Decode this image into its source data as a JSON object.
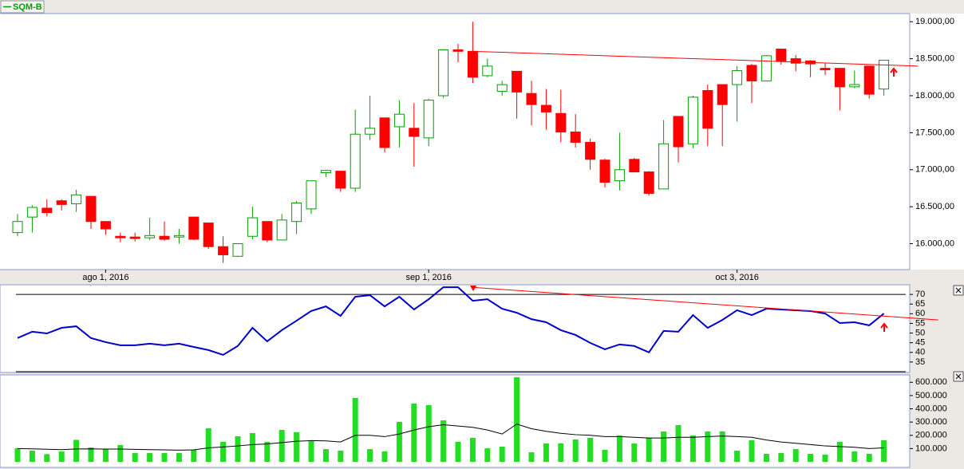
{
  "chart_data": [
    {
      "type": "candlestick",
      "title": "SQM-B",
      "categories": [
        null,
        null,
        null,
        null,
        null,
        null,
        "ago 1, 2016",
        null,
        null,
        null,
        null,
        null,
        null,
        null,
        null,
        null,
        null,
        null,
        null,
        null,
        null,
        null,
        null,
        null,
        null,
        null,
        null,
        null,
        "sep 1, 2016",
        null,
        null,
        null,
        null,
        null,
        null,
        null,
        null,
        null,
        null,
        null,
        null,
        null,
        null,
        null,
        null,
        null,
        null,
        null,
        null,
        "oct 3, 2016",
        null,
        null,
        null,
        null,
        null,
        null,
        null,
        null,
        null,
        null
      ],
      "open": [
        16150,
        16360,
        16480,
        16580,
        16540,
        16640,
        16300,
        16100,
        16090,
        16080,
        16100,
        16090,
        16360,
        16280,
        15960,
        15830,
        16100,
        16300,
        16050,
        16300,
        16470,
        16960,
        16980,
        16750,
        17480,
        17700,
        17580,
        17560,
        17430,
        18000,
        18620,
        18600,
        18270,
        18060,
        18330,
        18030,
        17870,
        17760,
        17510,
        17370,
        17130,
        16850,
        17140,
        16970,
        16740,
        17720,
        17350,
        18070,
        18150,
        18150,
        18410,
        18200,
        18630,
        18500,
        18470,
        18370,
        18370,
        18120,
        18400,
        18090
      ],
      "high": [
        16400,
        16520,
        16600,
        16600,
        16730,
        16640,
        16300,
        16150,
        16150,
        16350,
        16300,
        16200,
        16360,
        16280,
        16100,
        16000,
        16500,
        16300,
        16400,
        16580,
        16850,
        17000,
        16980,
        17810,
        18000,
        17700,
        17940,
        17900,
        17960,
        18620,
        18700,
        19000,
        18500,
        18200,
        18330,
        18200,
        18090,
        18080,
        17750,
        17420,
        17150,
        17500,
        17160,
        16980,
        17670,
        17720,
        18000,
        18150,
        18150,
        18400,
        18430,
        18550,
        18630,
        18550,
        18480,
        18440,
        18370,
        18340,
        18400,
        18480
      ],
      "low": [
        16100,
        16150,
        16370,
        16450,
        16430,
        16200,
        16120,
        16020,
        16030,
        16050,
        16040,
        16000,
        16050,
        15930,
        15740,
        15820,
        16060,
        16020,
        16050,
        16130,
        16400,
        16900,
        16700,
        16700,
        17400,
        17230,
        17300,
        17040,
        17320,
        17970,
        18450,
        18170,
        18250,
        18000,
        17690,
        17600,
        17540,
        17370,
        17300,
        17000,
        16760,
        16720,
        16970,
        16650,
        16740,
        17100,
        17290,
        17320,
        17320,
        17650,
        17900,
        18200,
        18420,
        18330,
        18250,
        18280,
        17800,
        18100,
        17960,
        18000
      ],
      "close": [
        16300,
        16490,
        16420,
        16530,
        16660,
        16300,
        16200,
        16080,
        16070,
        16110,
        16060,
        16110,
        16060,
        15960,
        15850,
        16000,
        16350,
        16050,
        16320,
        16550,
        16850,
        16990,
        16750,
        17480,
        17560,
        17300,
        17750,
        17450,
        17940,
        18620,
        18600,
        18250,
        18400,
        18150,
        18050,
        17880,
        17780,
        17510,
        17370,
        17140,
        16830,
        17000,
        16970,
        16680,
        17350,
        17310,
        17980,
        17560,
        17880,
        18340,
        18200,
        18540,
        18470,
        18440,
        18430,
        18350,
        18120,
        18150,
        18020,
        18480
      ],
      "up_color": "#00a000",
      "down_color": "#ff0000",
      "ylim": [
        15650,
        19110
      ],
      "yticks": [
        {
          "value": 16000,
          "label": "16.000,00"
        },
        {
          "value": 16500,
          "label": "16.500,00"
        },
        {
          "value": 17000,
          "label": "17.000,00"
        },
        {
          "value": 17500,
          "label": "17.500,00"
        },
        {
          "value": 18000,
          "label": "18.000,00"
        },
        {
          "value": 18500,
          "label": "18.500,00"
        },
        {
          "value": 19000,
          "label": "19.000,00"
        }
      ],
      "trendline": {
        "x": [
          31,
          61.3
        ],
        "y": [
          18600,
          18400
        ],
        "color": "#ff0000"
      }
    },
    {
      "type": "line",
      "color": "#0000cc",
      "values": [
        47.4,
        50.7,
        49.8,
        52.7,
        53.5,
        47.4,
        45.3,
        43.7,
        43.7,
        44.5,
        43.7,
        44.5,
        42.8,
        41.2,
        38.7,
        43.3,
        52.7,
        45.7,
        51.5,
        56.4,
        61.4,
        63.8,
        58.9,
        68.8,
        69.6,
        63.8,
        68.8,
        62.2,
        67.5,
        73.7,
        73.7,
        66.7,
        67.5,
        62.6,
        60.5,
        57.2,
        55.6,
        51.5,
        49,
        44.9,
        41.6,
        44.1,
        43.3,
        40,
        51.1,
        50.7,
        59.3,
        52.7,
        56.8,
        61.8,
        59.3,
        62.6,
        62.2,
        61.8,
        61.4,
        60.1,
        55.2,
        55.6,
        54,
        60.1
      ],
      "ylim": [
        30,
        75
      ],
      "yticks": [
        35,
        40,
        45,
        50,
        55,
        60,
        65,
        70
      ],
      "reference_lines": [
        30,
        70
      ],
      "trendline": {
        "x": [
          30.9,
          62.7
        ],
        "y": [
          73.7,
          56.8
        ],
        "color": "#ff0000"
      }
    },
    {
      "type": "bar",
      "series": [
        {
          "color": "#22dd22",
          "values": [
            102000,
            84000,
            58000,
            78000,
            166000,
            108000,
            96000,
            127000,
            66000,
            66000,
            66000,
            66000,
            90000,
            253000,
            151000,
            193000,
            217000,
            151000,
            241000,
            223000,
            163000,
            96000,
            84000,
            482000,
            96000,
            78000,
            301000,
            440000,
            428000,
            313000,
            151000,
            181000,
            102000,
            114000,
            639000,
            72000,
            139000,
            139000,
            169000,
            181000,
            90000,
            199000,
            139000,
            181000,
            229000,
            277000,
            199000,
            229000,
            229000,
            84000,
            163000,
            60000,
            66000,
            96000,
            60000,
            54000,
            151000,
            78000,
            60000,
            163000
          ]
        },
        {
          "color": "#000000",
          "style": "line",
          "values": [
            100000,
            98000,
            95000,
            92000,
            97000,
            98000,
            96000,
            96000,
            94000,
            92000,
            90000,
            88000,
            90000,
            105000,
            112000,
            120000,
            130000,
            135000,
            145000,
            155000,
            160000,
            158000,
            150000,
            200000,
            200000,
            190000,
            210000,
            240000,
            265000,
            280000,
            270000,
            260000,
            240000,
            210000,
            285000,
            250000,
            230000,
            215000,
            205000,
            200000,
            190000,
            190000,
            185000,
            180000,
            180000,
            185000,
            185000,
            190000,
            195000,
            190000,
            185000,
            165000,
            150000,
            140000,
            130000,
            120000,
            115000,
            110000,
            100000,
            105000
          ]
        }
      ],
      "ylim": [
        0,
        650000
      ],
      "yticks": [
        {
          "value": 100000,
          "label": "100.000"
        },
        {
          "value": 200000,
          "label": "200.000"
        },
        {
          "value": 300000,
          "label": "300.000"
        },
        {
          "value": 400000,
          "label": "400.000"
        },
        {
          "value": 500000,
          "label": "500.000"
        },
        {
          "value": 600000,
          "label": "600.000"
        }
      ]
    }
  ]
}
